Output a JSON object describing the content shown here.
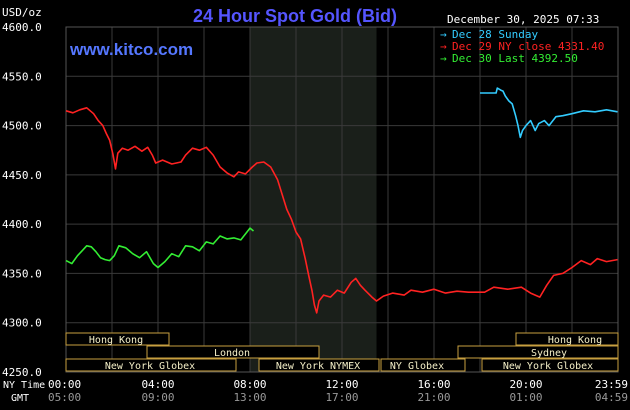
{
  "header": {
    "unit_label": "USD/oz",
    "title": "24 Hour Spot Gold (Bid)",
    "timestamp": "December 30, 2025 07:33",
    "brand": "www.kitco.com"
  },
  "legend": [
    {
      "label": "Dec 28 Sunday",
      "color": "#33ccff"
    },
    {
      "label": "Dec 29 NY close 4331.40",
      "color": "#ff2222"
    },
    {
      "label": "Dec 30 Last 4392.50",
      "color": "#33ee33"
    }
  ],
  "x_axis": {
    "row_labels": [
      "NY Time",
      "GMT"
    ],
    "ny_ticks": [
      "00:00",
      "04:00",
      "08:00",
      "12:00",
      "16:00",
      "20:00",
      "23:59"
    ],
    "gmt_ticks": [
      "05:00",
      "09:00",
      "13:00",
      "17:00",
      "21:00",
      "01:00",
      "04:59"
    ]
  },
  "sessions": {
    "hong_kong_1": "Hong Kong",
    "hong_kong_2": "Hong Kong",
    "london": "London",
    "sydney": "Sydney",
    "new_york_globex_1": "New York Globex",
    "new_york_nymex": "New York NYMEX",
    "ny_globex": "NY Globex",
    "new_york_globex_2": "New York Globex"
  },
  "colors": {
    "background": "#000000",
    "plot_background": "#000000",
    "nymex_shade": "#1a1f1a",
    "grid": "#3a3a3a",
    "title": "#5555ff",
    "brand": "#5577ff",
    "session_fill": "#f5f0c8",
    "session_border": "#c8a040",
    "axis_text": "#ffffff",
    "gmt_text": "#999999"
  },
  "chart_data": {
    "type": "line",
    "ylabel": "USD/oz",
    "ylim": [
      4250,
      4600
    ],
    "yticks": [
      "4250.0",
      "4300.0",
      "4350.0",
      "4400.0",
      "4450.0",
      "4500.0",
      "4550.0",
      "4600.0"
    ],
    "xlim": [
      0,
      24
    ],
    "nymex_session": [
      8.0,
      13.5
    ],
    "series": [
      {
        "name": "Dec 29 NY close 4331.40",
        "color": "#ff2222",
        "points": [
          [
            0,
            4515
          ],
          [
            0.3,
            4513
          ],
          [
            0.6,
            4516
          ],
          [
            0.9,
            4518
          ],
          [
            1.2,
            4512
          ],
          [
            1.4,
            4505
          ],
          [
            1.6,
            4500
          ],
          [
            1.75,
            4492
          ],
          [
            1.9,
            4485
          ],
          [
            2.05,
            4470
          ],
          [
            2.15,
            4456
          ],
          [
            2.25,
            4472
          ],
          [
            2.45,
            4477
          ],
          [
            2.7,
            4475
          ],
          [
            3.0,
            4479
          ],
          [
            3.3,
            4474
          ],
          [
            3.55,
            4478
          ],
          [
            3.75,
            4470
          ],
          [
            3.9,
            4462
          ],
          [
            4.2,
            4465
          ],
          [
            4.6,
            4461
          ],
          [
            5.0,
            4463
          ],
          [
            5.2,
            4470
          ],
          [
            5.5,
            4477
          ],
          [
            5.8,
            4475
          ],
          [
            6.1,
            4478
          ],
          [
            6.4,
            4470
          ],
          [
            6.7,
            4458
          ],
          [
            7.0,
            4452
          ],
          [
            7.3,
            4448
          ],
          [
            7.5,
            4453
          ],
          [
            7.8,
            4451
          ],
          [
            8.1,
            4458
          ],
          [
            8.3,
            4462
          ],
          [
            8.6,
            4463
          ],
          [
            8.9,
            4458
          ],
          [
            9.2,
            4445
          ],
          [
            9.4,
            4430
          ],
          [
            9.6,
            4415
          ],
          [
            9.8,
            4405
          ],
          [
            10.0,
            4392
          ],
          [
            10.2,
            4385
          ],
          [
            10.4,
            4365
          ],
          [
            10.55,
            4348
          ],
          [
            10.7,
            4332
          ],
          [
            10.8,
            4318
          ],
          [
            10.9,
            4310
          ],
          [
            11.0,
            4322
          ],
          [
            11.2,
            4328
          ],
          [
            11.5,
            4326
          ],
          [
            11.8,
            4333
          ],
          [
            12.1,
            4330
          ],
          [
            12.4,
            4341
          ],
          [
            12.6,
            4345
          ],
          [
            12.8,
            4338
          ],
          [
            13.0,
            4333
          ],
          [
            13.3,
            4326
          ],
          [
            13.5,
            4322
          ],
          [
            13.8,
            4327
          ],
          [
            14.2,
            4330
          ],
          [
            14.7,
            4328
          ],
          [
            15.0,
            4333
          ],
          [
            15.5,
            4331
          ],
          [
            16.0,
            4334
          ],
          [
            16.5,
            4330
          ],
          [
            17.0,
            4332
          ],
          [
            17.5,
            4331
          ],
          [
            18.2,
            4331
          ],
          [
            18.6,
            4336
          ],
          [
            19.2,
            4334
          ],
          [
            19.8,
            4336
          ],
          [
            20.2,
            4330
          ],
          [
            20.6,
            4326
          ],
          [
            20.9,
            4338
          ],
          [
            21.2,
            4348
          ],
          [
            21.6,
            4350
          ],
          [
            22.0,
            4356
          ],
          [
            22.4,
            4363
          ],
          [
            22.8,
            4359
          ],
          [
            23.1,
            4365
          ],
          [
            23.5,
            4362
          ],
          [
            23.98,
            4364
          ]
        ]
      },
      {
        "name": "Dec 30 Last 4392.50",
        "color": "#33ee33",
        "points": [
          [
            0,
            4363
          ],
          [
            0.25,
            4360
          ],
          [
            0.5,
            4368
          ],
          [
            0.7,
            4373
          ],
          [
            0.9,
            4378
          ],
          [
            1.1,
            4377
          ],
          [
            1.3,
            4372
          ],
          [
            1.5,
            4366
          ],
          [
            1.7,
            4364
          ],
          [
            1.9,
            4363
          ],
          [
            2.1,
            4368
          ],
          [
            2.3,
            4378
          ],
          [
            2.6,
            4376
          ],
          [
            2.9,
            4370
          ],
          [
            3.2,
            4366
          ],
          [
            3.5,
            4372
          ],
          [
            3.8,
            4360
          ],
          [
            4.0,
            4356
          ],
          [
            4.3,
            4362
          ],
          [
            4.6,
            4370
          ],
          [
            4.9,
            4367
          ],
          [
            5.2,
            4378
          ],
          [
            5.5,
            4377
          ],
          [
            5.8,
            4373
          ],
          [
            6.1,
            4382
          ],
          [
            6.4,
            4380
          ],
          [
            6.7,
            4388
          ],
          [
            7.0,
            4385
          ],
          [
            7.3,
            4386
          ],
          [
            7.6,
            4384
          ],
          [
            7.8,
            4390
          ],
          [
            8.0,
            4396
          ],
          [
            8.15,
            4393
          ]
        ]
      },
      {
        "name": "Dec 28 Sunday",
        "color": "#33ccff",
        "points": [
          [
            18.0,
            4533
          ],
          [
            18.7,
            4533
          ],
          [
            18.75,
            4538
          ],
          [
            18.9,
            4536
          ],
          [
            19.0,
            4535
          ],
          [
            19.1,
            4530
          ],
          [
            19.25,
            4525
          ],
          [
            19.4,
            4522
          ],
          [
            19.55,
            4510
          ],
          [
            19.65,
            4500
          ],
          [
            19.75,
            4488
          ],
          [
            19.85,
            4495
          ],
          [
            20.0,
            4500
          ],
          [
            20.2,
            4505
          ],
          [
            20.4,
            4495
          ],
          [
            20.55,
            4502
          ],
          [
            20.8,
            4505
          ],
          [
            21.0,
            4500
          ],
          [
            21.3,
            4509
          ],
          [
            21.6,
            4510
          ],
          [
            22.0,
            4512
          ],
          [
            22.5,
            4515
          ],
          [
            23.0,
            4514
          ],
          [
            23.5,
            4516
          ],
          [
            23.98,
            4514
          ]
        ]
      }
    ]
  }
}
